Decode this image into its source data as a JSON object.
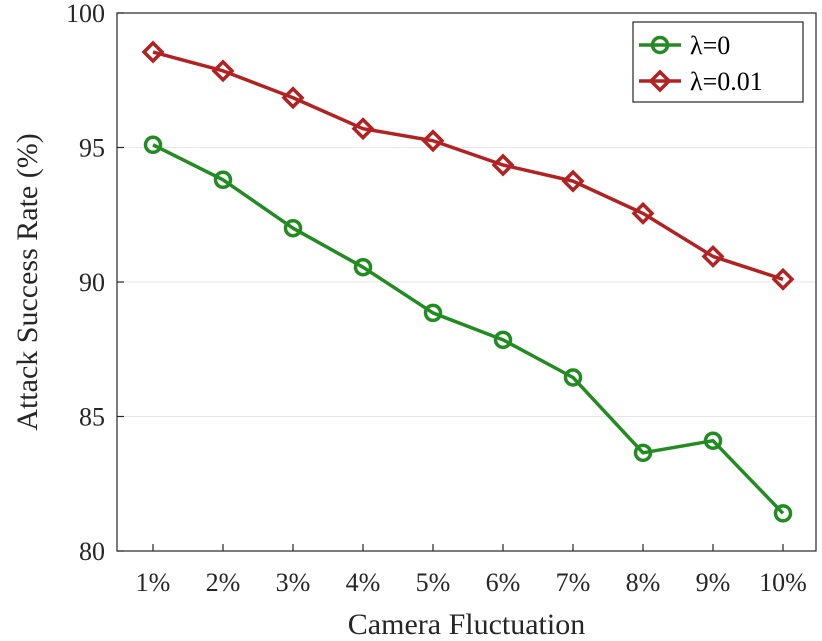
{
  "chart_data": {
    "type": "line",
    "categories": [
      "1%",
      "2%",
      "3%",
      "4%",
      "5%",
      "6%",
      "7%",
      "8%",
      "9%",
      "10%"
    ],
    "series": [
      {
        "name": "λ=0",
        "color": "#228B22",
        "marker": "circle",
        "values": [
          95.1,
          93.8,
          92.0,
          90.55,
          88.85,
          87.85,
          86.45,
          83.65,
          84.1,
          81.4
        ]
      },
      {
        "name": "λ=0.01",
        "color": "#B22222",
        "marker": "diamond",
        "values": [
          98.55,
          97.85,
          96.85,
          95.7,
          95.25,
          94.35,
          93.75,
          92.55,
          90.95,
          90.1
        ]
      }
    ],
    "xlabel": "Camera Fluctuation",
    "ylabel": "Attack Success Rate (%)",
    "ylim": [
      80,
      100
    ],
    "yticks": [
      80,
      85,
      90,
      95,
      100
    ],
    "grid": "horizontal",
    "legend_position": "top-right"
  }
}
